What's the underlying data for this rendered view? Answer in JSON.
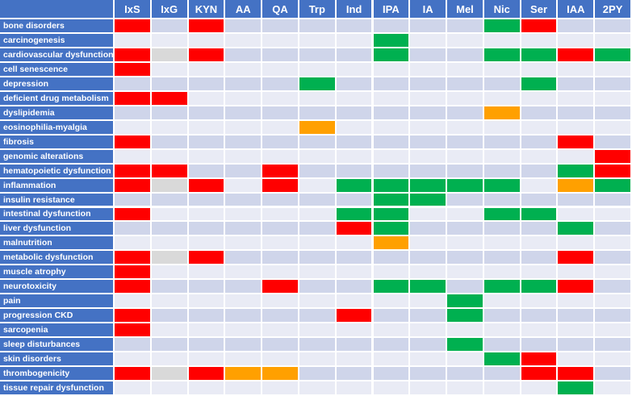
{
  "columns": [
    "IxS",
    "IxG",
    "KYN",
    "AA",
    "QA",
    "Trp",
    "Ind",
    "IPA",
    "IA",
    "Mel",
    "Nic",
    "Ser",
    "IAA",
    "2PY"
  ],
  "colors": {
    "red": "#ff0000",
    "green": "#00b050",
    "orange": "#ffa000",
    "grey": "#d9d9d9",
    "row_odd": "#cfd5ea",
    "row_even": "#e9ebf5",
    "header": "#4472c4"
  },
  "rows": [
    {
      "label": "bone disorders",
      "cells": [
        "red",
        "",
        "red",
        "",
        "",
        "",
        "",
        "",
        "",
        "",
        "green",
        "red",
        "",
        ""
      ]
    },
    {
      "label": "carcinogenesis",
      "cells": [
        "",
        "",
        "",
        "",
        "",
        "",
        "",
        "green",
        "",
        "",
        "",
        "",
        "",
        ""
      ]
    },
    {
      "label": "cardiovascular dysfunction",
      "cells": [
        "red",
        "grey",
        "red",
        "",
        "",
        "",
        "",
        "green",
        "",
        "",
        "green",
        "green",
        "red",
        "green"
      ]
    },
    {
      "label": "cell senescence",
      "cells": [
        "red",
        "",
        "",
        "",
        "",
        "",
        "",
        "",
        "",
        "",
        "",
        "",
        "",
        ""
      ]
    },
    {
      "label": "depression",
      "cells": [
        "",
        "",
        "",
        "",
        "",
        "green",
        "",
        "",
        "",
        "",
        "",
        "green",
        "",
        ""
      ]
    },
    {
      "label": "deficient drug metabolism",
      "cells": [
        "red",
        "red",
        "",
        "",
        "",
        "",
        "",
        "",
        "",
        "",
        "",
        "",
        "",
        ""
      ]
    },
    {
      "label": "dyslipidemia",
      "cells": [
        "",
        "",
        "",
        "",
        "",
        "",
        "",
        "",
        "",
        "",
        "orange",
        "",
        "",
        ""
      ]
    },
    {
      "label": "eosinophilia-myalgia",
      "cells": [
        "",
        "",
        "",
        "",
        "",
        "orange",
        "",
        "",
        "",
        "",
        "",
        "",
        "",
        ""
      ]
    },
    {
      "label": "fibrosis",
      "cells": [
        "red",
        "",
        "",
        "",
        "",
        "",
        "",
        "",
        "",
        "",
        "",
        "",
        "red",
        ""
      ]
    },
    {
      "label": "genomic alterations",
      "cells": [
        "",
        "",
        "",
        "",
        "",
        "",
        "",
        "",
        "",
        "",
        "",
        "",
        "",
        "red"
      ]
    },
    {
      "label": "hematopoietic dysfunction",
      "cells": [
        "red",
        "red",
        "",
        "",
        "red",
        "",
        "",
        "",
        "",
        "",
        "",
        "",
        "green",
        "red"
      ]
    },
    {
      "label": "inflammation",
      "cells": [
        "red",
        "grey",
        "red",
        "",
        "red",
        "",
        "green",
        "green",
        "green",
        "green",
        "green",
        "",
        "orange",
        "green"
      ]
    },
    {
      "label": "insulin resistance",
      "cells": [
        "",
        "",
        "",
        "",
        "",
        "",
        "",
        "green",
        "green",
        "",
        "",
        "",
        "",
        ""
      ]
    },
    {
      "label": "intestinal dysfunction",
      "cells": [
        "red",
        "",
        "",
        "",
        "",
        "",
        "green",
        "green",
        "",
        "",
        "green",
        "green",
        "",
        ""
      ]
    },
    {
      "label": "liver dysfunction",
      "cells": [
        "",
        "",
        "",
        "",
        "",
        "",
        "red",
        "green",
        "",
        "",
        "",
        "",
        "green",
        ""
      ]
    },
    {
      "label": "malnutrition",
      "cells": [
        "",
        "",
        "",
        "",
        "",
        "",
        "",
        "orange",
        "",
        "",
        "",
        "",
        "",
        ""
      ]
    },
    {
      "label": "metabolic dysfunction",
      "cells": [
        "red",
        "grey",
        "red",
        "",
        "",
        "",
        "",
        "",
        "",
        "",
        "",
        "",
        "red",
        ""
      ]
    },
    {
      "label": "muscle atrophy",
      "cells": [
        "red",
        "",
        "",
        "",
        "",
        "",
        "",
        "",
        "",
        "",
        "",
        "",
        "",
        ""
      ]
    },
    {
      "label": "neurotoxicity",
      "cells": [
        "red",
        "",
        "",
        "",
        "red",
        "",
        "",
        "green",
        "green",
        "",
        "green",
        "green",
        "red",
        ""
      ]
    },
    {
      "label": "pain",
      "cells": [
        "",
        "",
        "",
        "",
        "",
        "",
        "",
        "",
        "",
        "green",
        "",
        "",
        "",
        ""
      ]
    },
    {
      "label": "progression CKD",
      "cells": [
        "red",
        "",
        "",
        "",
        "",
        "",
        "red",
        "",
        "",
        "green",
        "",
        "",
        "",
        ""
      ]
    },
    {
      "label": "sarcopenia",
      "cells": [
        "red",
        "",
        "",
        "",
        "",
        "",
        "",
        "",
        "",
        "",
        "",
        "",
        "",
        ""
      ]
    },
    {
      "label": "sleep disturbances",
      "cells": [
        "",
        "",
        "",
        "",
        "",
        "",
        "",
        "",
        "",
        "green",
        "",
        "",
        "",
        ""
      ]
    },
    {
      "label": "skin disorders",
      "cells": [
        "",
        "",
        "",
        "",
        "",
        "",
        "",
        "",
        "",
        "",
        "green",
        "red",
        "",
        ""
      ]
    },
    {
      "label": "thrombogenicity",
      "cells": [
        "red",
        "grey",
        "red",
        "orange",
        "orange",
        "",
        "",
        "",
        "",
        "",
        "",
        "red",
        "red",
        ""
      ]
    },
    {
      "label": "tissue repair dysfunction",
      "cells": [
        "",
        "",
        "",
        "",
        "",
        "",
        "",
        "",
        "",
        "",
        "",
        "",
        "green",
        ""
      ]
    }
  ]
}
